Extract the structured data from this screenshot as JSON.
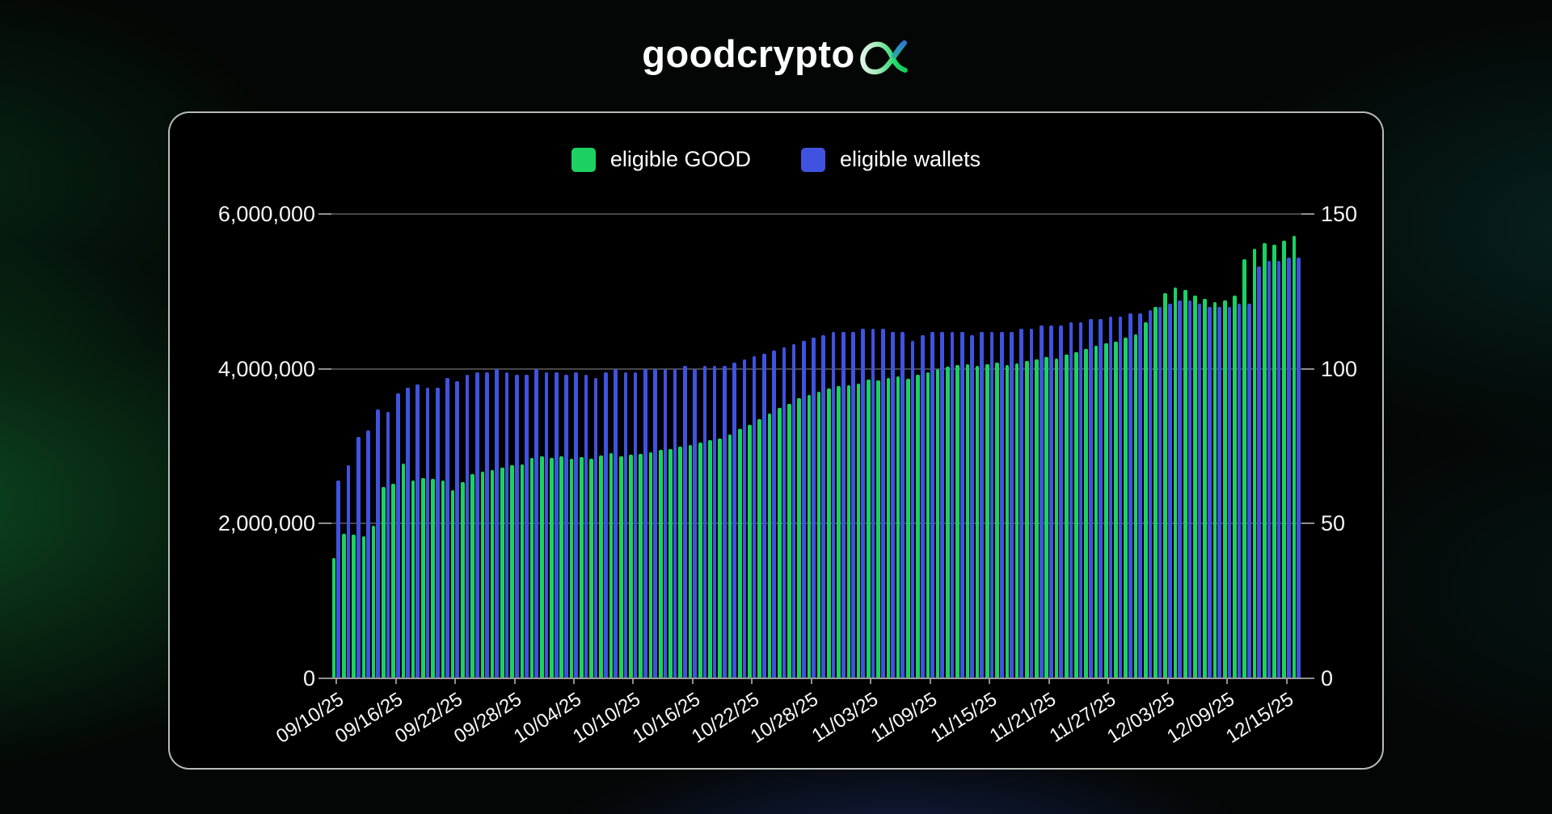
{
  "logo": {
    "text": "goodcrypto",
    "mark": "alpha-x-mark"
  },
  "chart_data": {
    "type": "bar",
    "title": "",
    "legend_position": "top",
    "grid": true,
    "x_tick_every": 6,
    "x": [
      "09/10/25",
      "09/11/25",
      "09/12/25",
      "09/13/25",
      "09/14/25",
      "09/15/25",
      "09/16/25",
      "09/17/25",
      "09/18/25",
      "09/19/25",
      "09/20/25",
      "09/21/25",
      "09/22/25",
      "09/23/25",
      "09/24/25",
      "09/25/25",
      "09/26/25",
      "09/27/25",
      "09/28/25",
      "09/29/25",
      "09/30/25",
      "10/01/25",
      "10/02/25",
      "10/03/25",
      "10/04/25",
      "10/05/25",
      "10/06/25",
      "10/07/25",
      "10/08/25",
      "10/09/25",
      "10/10/25",
      "10/11/25",
      "10/12/25",
      "10/13/25",
      "10/14/25",
      "10/15/25",
      "10/16/25",
      "10/17/25",
      "10/18/25",
      "10/19/25",
      "10/20/25",
      "10/21/25",
      "10/22/25",
      "10/23/25",
      "10/24/25",
      "10/25/25",
      "10/26/25",
      "10/27/25",
      "10/28/25",
      "10/29/25",
      "10/30/25",
      "10/31/25",
      "11/01/25",
      "11/02/25",
      "11/03/25",
      "11/04/25",
      "11/05/25",
      "11/06/25",
      "11/07/25",
      "11/08/25",
      "11/09/25",
      "11/10/25",
      "11/11/25",
      "11/12/25",
      "11/13/25",
      "11/14/25",
      "11/15/25",
      "11/16/25",
      "11/17/25",
      "11/18/25",
      "11/19/25",
      "11/20/25",
      "11/21/25",
      "11/22/25",
      "11/23/25",
      "11/24/25",
      "11/25/25",
      "11/26/25",
      "11/27/25",
      "11/28/25",
      "11/29/25",
      "11/30/25",
      "12/01/25",
      "12/02/25",
      "12/03/25",
      "12/04/25",
      "12/05/25",
      "12/06/25",
      "12/07/25",
      "12/08/25",
      "12/09/25",
      "12/10/25",
      "12/11/25",
      "12/12/25",
      "12/13/25",
      "12/14/25",
      "12/15/25",
      "12/16/25"
    ],
    "series": [
      {
        "name": "eligible GOOD",
        "axis": "left",
        "color": "#1CD162",
        "values": [
          1550000,
          1870000,
          1860000,
          1840000,
          1970000,
          2470000,
          2520000,
          2780000,
          2560000,
          2590000,
          2580000,
          2560000,
          2430000,
          2540000,
          2640000,
          2670000,
          2690000,
          2720000,
          2750000,
          2770000,
          2850000,
          2870000,
          2850000,
          2870000,
          2840000,
          2860000,
          2840000,
          2880000,
          2910000,
          2870000,
          2890000,
          2900000,
          2920000,
          2950000,
          2960000,
          3000000,
          3020000,
          3050000,
          3080000,
          3100000,
          3150000,
          3220000,
          3280000,
          3350000,
          3420000,
          3500000,
          3550000,
          3620000,
          3660000,
          3700000,
          3750000,
          3780000,
          3790000,
          3810000,
          3860000,
          3850000,
          3880000,
          3900000,
          3870000,
          3920000,
          3960000,
          4000000,
          4030000,
          4050000,
          4060000,
          4040000,
          4060000,
          4080000,
          4050000,
          4070000,
          4100000,
          4120000,
          4150000,
          4130000,
          4180000,
          4220000,
          4260000,
          4300000,
          4330000,
          4350000,
          4400000,
          4450000,
          4600000,
          4800000,
          4980000,
          5050000,
          5020000,
          4950000,
          4900000,
          4860000,
          4880000,
          4950000,
          5420000,
          5550000,
          5620000,
          5600000,
          5660000,
          5720000
        ]
      },
      {
        "name": "eligible wallets",
        "axis": "right",
        "color": "#3F53DE",
        "values": [
          64,
          69,
          78,
          80,
          87,
          86,
          92,
          94,
          95,
          94,
          94,
          97,
          96,
          98,
          99,
          99,
          100,
          99,
          98,
          98,
          100,
          99,
          99,
          98,
          99,
          98,
          97,
          99,
          100,
          99,
          99,
          100,
          100,
          100,
          100,
          101,
          100,
          101,
          101,
          101,
          102,
          103,
          104,
          105,
          106,
          107,
          108,
          109,
          110,
          111,
          112,
          112,
          112,
          113,
          113,
          113,
          112,
          112,
          109,
          111,
          112,
          112,
          112,
          112,
          111,
          112,
          112,
          112,
          112,
          113,
          113,
          114,
          114,
          114,
          115,
          115,
          116,
          116,
          117,
          117,
          118,
          118,
          119,
          120,
          121,
          122,
          122,
          121,
          120,
          120,
          120,
          121,
          121,
          133,
          135,
          135,
          136,
          136
        ]
      }
    ],
    "left_axis": {
      "min": 0,
      "max": 6000000,
      "tick_values": [
        0,
        2000000,
        4000000,
        6000000
      ],
      "tick_labels": [
        "0",
        "2,000,000",
        "4,000,000",
        "6,000,000"
      ]
    },
    "right_axis": {
      "min": 0,
      "max": 150,
      "tick_values": [
        0,
        50,
        100,
        150
      ],
      "tick_labels": [
        "0",
        "50",
        "100",
        "150"
      ]
    }
  }
}
